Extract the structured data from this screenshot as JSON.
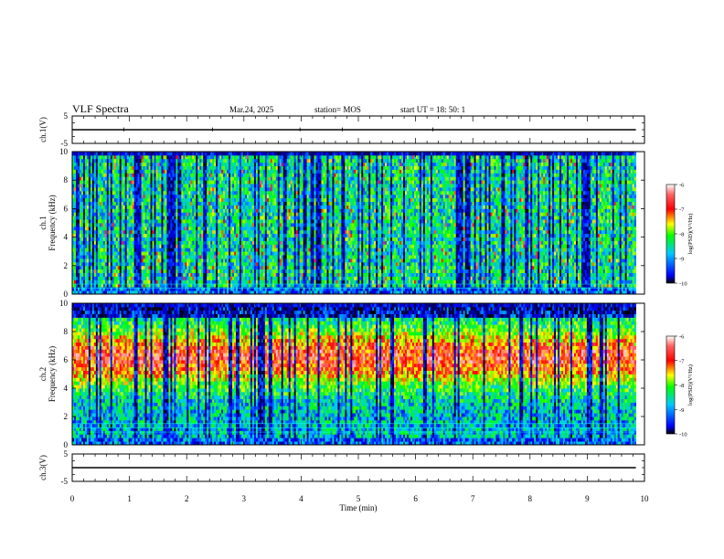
{
  "header": {
    "title": "VLF Spectra",
    "date": "Mar.24, 2025",
    "station": "station= MOS",
    "start": "start UT =  18: 50: 1"
  },
  "chart_data": [
    {
      "type": "line",
      "panel": "ch1-waveform",
      "ylabel": "ch.1(V)",
      "ylim": [
        -5,
        5
      ],
      "xlim": [
        0,
        10
      ],
      "series": [
        {
          "x": [
            0,
            9.85
          ],
          "values": [
            0,
            0
          ]
        }
      ]
    },
    {
      "type": "heatmap",
      "panel": "ch1-spectrogram",
      "ylabel": "ch.1\nFrequency (kHz)",
      "ylim": [
        0,
        10
      ],
      "xlim": [
        0,
        10
      ],
      "data_end_min": 9.85,
      "y_ticks": [
        0,
        2,
        4,
        6,
        8,
        10
      ],
      "colorbar": {
        "label": "log(PSD)(V²/Hz)",
        "range": [
          -10,
          -6
        ],
        "ticks": [
          -6,
          -7,
          -8,
          -9,
          -10
        ]
      }
    },
    {
      "type": "heatmap",
      "panel": "ch2-spectrogram",
      "ylabel": "ch.2\nFrequency (kHz)",
      "ylim": [
        0,
        10
      ],
      "xlim": [
        0,
        10
      ],
      "data_end_min": 9.85,
      "y_ticks": [
        0,
        2,
        4,
        6,
        8,
        10
      ],
      "colorbar": {
        "label": "log(PSD)(V²/Hz)",
        "range": [
          -10,
          -6
        ],
        "ticks": [
          -6,
          -7,
          -8,
          -9,
          -10
        ]
      }
    },
    {
      "type": "line",
      "panel": "ch3-waveform",
      "ylabel": "ch.3(V)",
      "ylim": [
        -5,
        5
      ],
      "xlim": [
        0,
        10
      ],
      "series": [
        {
          "x": [
            0,
            9.85
          ],
          "values": [
            0,
            0
          ]
        }
      ]
    }
  ],
  "x_axis": {
    "label": "Time (min)",
    "ticks": [
      0,
      1,
      2,
      3,
      4,
      5,
      6,
      7,
      8,
      9,
      10
    ]
  },
  "colors": {
    "colormap": [
      "#000000",
      "#0000ff",
      "#00c8ff",
      "#00ff00",
      "#ffff00",
      "#ff0000",
      "#ffc8c8"
    ]
  }
}
